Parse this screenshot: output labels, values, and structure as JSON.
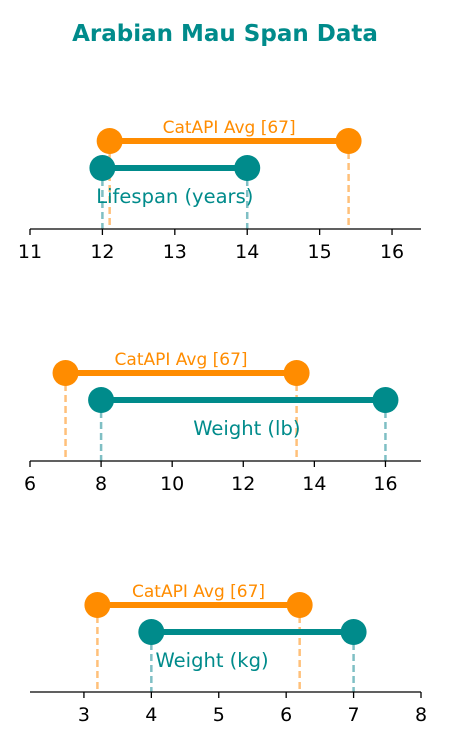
{
  "title": "Arabian Mau Span Data",
  "colors": {
    "title": "#008b8b",
    "breed": "#008b8b",
    "reference": "#ff8c00",
    "breed_drop": "#7fbfc4",
    "reference_drop": "#ffc07a",
    "axis": "#000000"
  },
  "chart_data": [
    {
      "type": "range",
      "metric": "Lifespan (years)",
      "xlim": [
        11,
        16.4
      ],
      "ticks": [
        11,
        12,
        13,
        14,
        15,
        16
      ],
      "breed": {
        "label": "Lifespan (years)",
        "min": 12,
        "max": 14
      },
      "reference": {
        "label": "CatAPI Avg [67]",
        "min": 12.1,
        "max": 15.4
      }
    },
    {
      "type": "range",
      "metric": "Weight (lb)",
      "xlim": [
        6,
        17
      ],
      "ticks": [
        6,
        8,
        10,
        12,
        14,
        16
      ],
      "breed": {
        "label": "Weight (lb)",
        "min": 8,
        "max": 16
      },
      "reference": {
        "label": "CatAPI Avg [67]",
        "min": 7,
        "max": 13.5
      }
    },
    {
      "type": "range",
      "metric": "Weight (kg)",
      "xlim": [
        2.2,
        8
      ],
      "ticks": [
        3,
        4,
        5,
        6,
        7,
        8
      ],
      "breed": {
        "label": "Weight (kg)",
        "min": 4,
        "max": 7
      },
      "reference": {
        "label": "CatAPI Avg [67]",
        "min": 3.2,
        "max": 6.2
      }
    }
  ]
}
